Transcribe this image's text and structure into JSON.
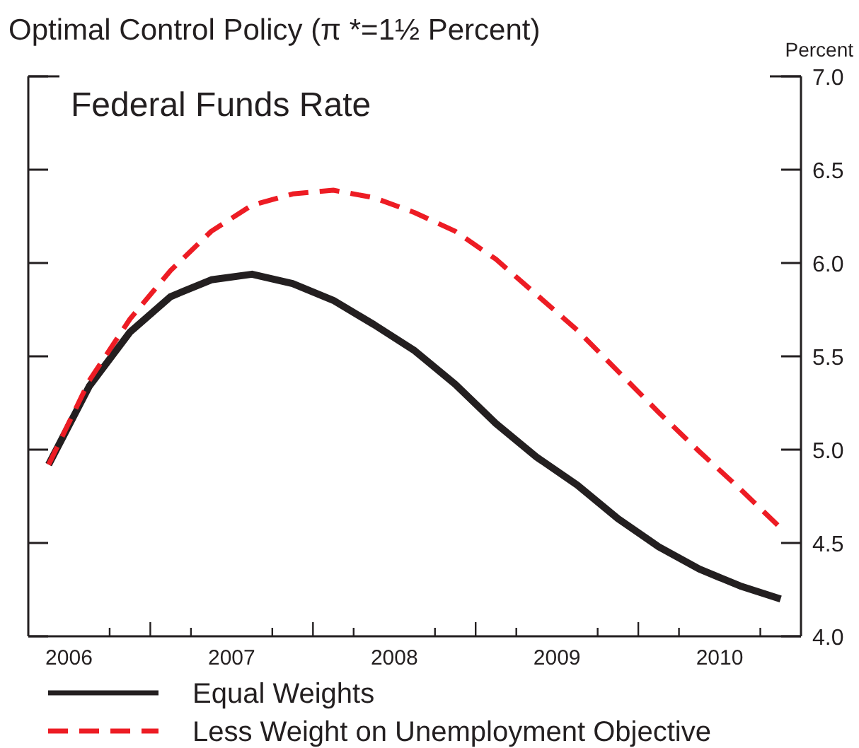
{
  "chart_data": {
    "type": "line",
    "title": "Optimal Control Policy (π *=1½ Percent)",
    "ylabel": "Percent",
    "annotations": [
      "Federal Funds Rate"
    ],
    "x": [
      2006.375,
      2006.625,
      2006.875,
      2007.125,
      2007.375,
      2007.625,
      2007.875,
      2008.125,
      2008.375,
      2008.625,
      2008.875,
      2009.125,
      2009.375,
      2009.625,
      2009.875,
      2010.125,
      2010.375,
      2010.625,
      2010.875
    ],
    "series": [
      {
        "name": "Equal Weights",
        "color": "#231f20",
        "line_style": "solid",
        "values": [
          4.92,
          5.34,
          5.63,
          5.82,
          5.91,
          5.94,
          5.89,
          5.8,
          5.67,
          5.53,
          5.35,
          5.14,
          4.96,
          4.81,
          4.63,
          4.48,
          4.36,
          4.27,
          4.2
        ]
      },
      {
        "name": "Less Weight on Unemployment Objective",
        "color": "#ed1c24",
        "line_style": "dashed",
        "values": [
          4.92,
          5.37,
          5.7,
          5.96,
          6.17,
          6.31,
          6.37,
          6.39,
          6.35,
          6.27,
          6.17,
          6.02,
          5.83,
          5.64,
          5.42,
          5.2,
          4.99,
          4.79,
          4.58
        ]
      }
    ],
    "xlim": [
      2006.25,
      2011
    ],
    "xticks": [
      {
        "value": 2006.5,
        "label": "2006"
      },
      {
        "value": 2007.5,
        "label": "2007"
      },
      {
        "value": 2008.5,
        "label": "2008"
      },
      {
        "value": 2009.5,
        "label": "2009"
      },
      {
        "value": 2010.5,
        "label": "2010"
      },
      {
        "value": 2007,
        "label": null
      },
      {
        "value": 2008,
        "label": null
      },
      {
        "value": 2009,
        "label": null
      },
      {
        "value": 2010,
        "label": null
      },
      {
        "value": 2006.75,
        "label": null
      },
      {
        "value": 2007.25,
        "label": null
      },
      {
        "value": 2007.75,
        "label": null
      },
      {
        "value": 2008.25,
        "label": null
      },
      {
        "value": 2008.75,
        "label": null
      },
      {
        "value": 2009.25,
        "label": null
      },
      {
        "value": 2009.75,
        "label": null
      },
      {
        "value": 2010.25,
        "label": null
      },
      {
        "value": 2010.75,
        "label": null
      }
    ],
    "ylim": [
      4.0,
      7.0
    ],
    "yticks": [
      {
        "value": 4.0,
        "label": "4.0"
      },
      {
        "value": 4.5,
        "label": "4.5"
      },
      {
        "value": 5.0,
        "label": "5.0"
      },
      {
        "value": 5.5,
        "label": "5.5"
      },
      {
        "value": 6.0,
        "label": "6.0"
      },
      {
        "value": 6.5,
        "label": "6.5"
      },
      {
        "value": 7.0,
        "label": "7.0"
      }
    ],
    "legend": "bottom",
    "grid": false
  }
}
